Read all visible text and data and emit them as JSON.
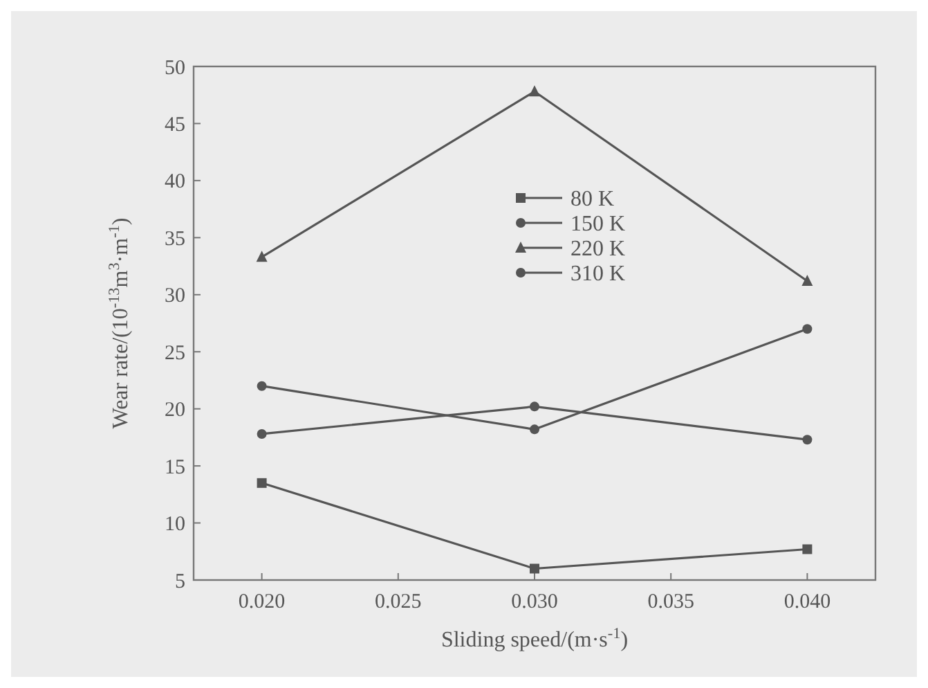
{
  "chart_data": {
    "type": "line",
    "xlabel": "Sliding speed/(m·s$^{-1}$)",
    "ylabel": "Wear rate/(10$^{-13}$m$^{3}$·m$^{-1}$)",
    "x": [
      0.02,
      0.03,
      0.04
    ],
    "xlim": [
      0.0175,
      0.0425
    ],
    "xticks": [
      {
        "value": 0.02,
        "label": "0.020"
      },
      {
        "value": 0.025,
        "label": "0.025"
      },
      {
        "value": 0.03,
        "label": "0.030"
      },
      {
        "value": 0.035,
        "label": "0.035"
      },
      {
        "value": 0.04,
        "label": "0.040"
      }
    ],
    "ylim": [
      5,
      50
    ],
    "yticks": [
      5,
      10,
      15,
      20,
      25,
      30,
      35,
      40,
      45,
      50
    ],
    "grid": false,
    "legend": "top",
    "line_style": "solid",
    "series": [
      {
        "name": "80 K",
        "color": "#555555",
        "marker": "square",
        "values": [
          13.5,
          6,
          7.7
        ]
      },
      {
        "name": "150 K",
        "color": "#555555",
        "marker": "circle",
        "values": [
          22,
          18.2,
          27
        ]
      },
      {
        "name": "220 K",
        "color": "#555555",
        "marker": "triangle",
        "values": [
          33.3,
          47.8,
          31.2
        ]
      },
      {
        "name": "310 K",
        "color": "#555555",
        "marker": "circle",
        "values": [
          17.8,
          20.2,
          17.3
        ]
      }
    ]
  }
}
